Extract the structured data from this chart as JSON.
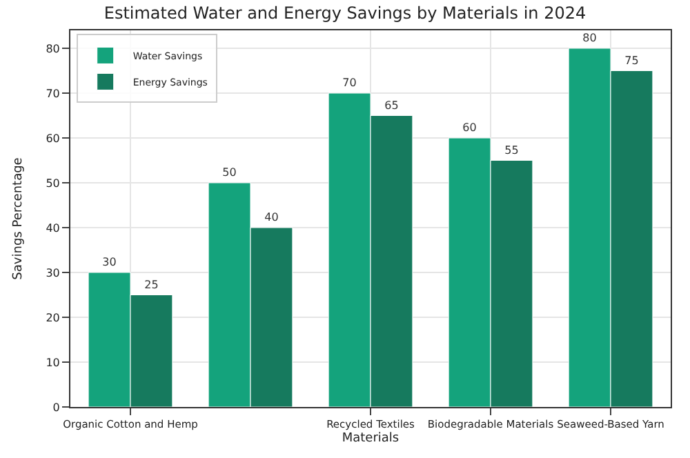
{
  "chart_data": {
    "type": "bar",
    "title": "Estimated Water and Energy Savings by Materials in 2024",
    "xlabel": "Materials",
    "ylabel": "Savings Percentage",
    "categories": [
      "Organic Cotton and Hemp",
      null,
      "Recycled Textiles",
      "Biodegradable Materials",
      "Seaweed-Based Yarn"
    ],
    "series": [
      {
        "name": "Water Savings",
        "color": "#14a37c",
        "values": [
          30,
          50,
          70,
          60,
          80
        ]
      },
      {
        "name": "Energy Savings",
        "color": "#167a5e",
        "values": [
          25,
          40,
          65,
          55,
          75
        ]
      }
    ],
    "ylim": [
      0,
      84
    ],
    "yticks": [
      0,
      10,
      20,
      30,
      40,
      50,
      60,
      70,
      80
    ],
    "grid": true,
    "legend": "top left",
    "data_labels": true
  }
}
